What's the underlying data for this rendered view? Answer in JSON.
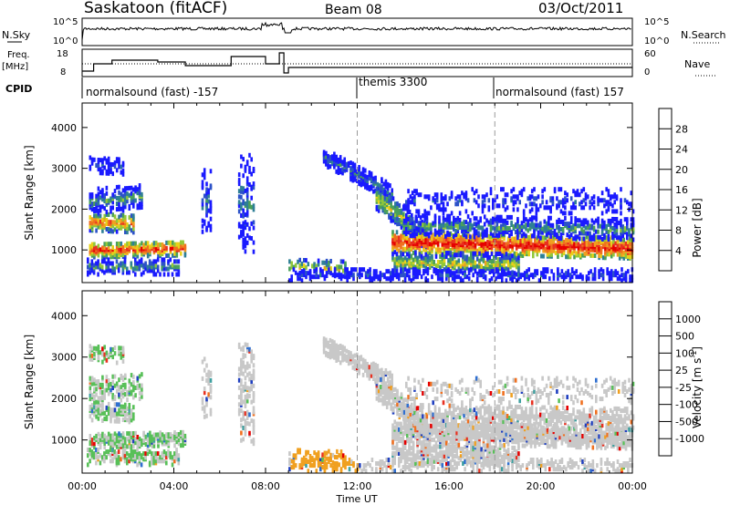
{
  "header": {
    "station": "Saskatoon (fitACF)",
    "beam": "Beam 08",
    "date": "03/Oct/2011"
  },
  "noise_panel": {
    "left_label": "N.Sky",
    "right_label": "N.Search",
    "ticks_left": [
      "10^5",
      "10^0"
    ],
    "ticks_right": [
      "10^5",
      "10^0"
    ]
  },
  "freq_panel": {
    "left_label_line1": "Freq.",
    "left_label_line2": "[MHz]",
    "right_label": "Nave",
    "ticks_left": [
      "18",
      "8"
    ],
    "ticks_right": [
      "60",
      "0"
    ]
  },
  "cpid": {
    "label": "CPID",
    "segments": [
      {
        "start_hour": 0,
        "text": "normalsound (fast) -157"
      },
      {
        "start_hour": 12,
        "text": "themis 3300"
      },
      {
        "start_hour": 18,
        "text": "normalsound (fast) 157"
      }
    ]
  },
  "colors": {
    "power_scale": [
      "#1a1aff",
      "#2c52c8",
      "#2f7f96",
      "#4aa05a",
      "#92c83a",
      "#e8d21a",
      "#f0a020",
      "#f07020",
      "#e83020",
      "#e60000"
    ],
    "velocity_scale": [
      "#2040c0",
      "#2f6fd0",
      "#3fa0a0",
      "#58c058",
      "#c8c8c8",
      "#c8c8c8",
      "#f0a020",
      "#f07020",
      "#e83020",
      "#e60000"
    ]
  },
  "chart_data": [
    {
      "type": "heatmap",
      "title": "Power",
      "xlabel": "Time UT",
      "ylabel": "Slant Range [km]",
      "x_range_hours": [
        0,
        24
      ],
      "y_range_km": [
        200,
        4600
      ],
      "xticks": [
        "00:00",
        "04:00",
        "08:00",
        "12:00",
        "16:00",
        "20:00",
        "00:00"
      ],
      "yticks": [
        1000,
        2000,
        3000,
        4000
      ],
      "colorbar": {
        "label": "Power [dB]",
        "ticks": [
          4,
          8,
          12,
          16,
          20,
          24,
          28
        ]
      },
      "grid_lines_hours": [
        12,
        18
      ]
    },
    {
      "type": "heatmap",
      "title": "Velocity",
      "xlabel": "Time UT",
      "ylabel": "Slant Range [km]",
      "x_range_hours": [
        0,
        24
      ],
      "y_range_km": [
        200,
        4600
      ],
      "xticks": [
        "00:00",
        "04:00",
        "08:00",
        "12:00",
        "16:00",
        "20:00",
        "00:00"
      ],
      "yticks": [
        1000,
        2000,
        3000,
        4000
      ],
      "colorbar": {
        "label": "Velocity [m s^-1]",
        "ticks": [
          1000,
          500,
          100,
          25,
          -25,
          -100,
          -500,
          -1000
        ]
      },
      "grid_lines_hours": [
        12,
        18
      ]
    }
  ],
  "xlabel_text": "Time UT",
  "power_cbar_label": "Power [dB]",
  "velocity_cbar_label": "Velocity [m s",
  "velocity_cbar_sup": "-1",
  "velocity_cbar_close": "]"
}
